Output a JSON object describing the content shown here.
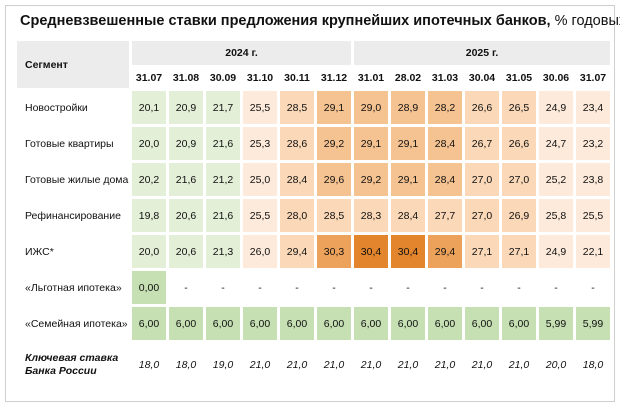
{
  "title": "Средневзвешенные ставки предложения крупнейших ипотечных банков,",
  "title_unit": "% годовых",
  "colors": {
    "green": "#c6e0b4",
    "green_light": "#e4efd8",
    "orange_dark": "#e2852c",
    "orange": "#eda25c",
    "orange_mid": "#f5c291",
    "orange_light": "#fad8b8",
    "orange_pale": "#fdeadb",
    "header_gray": "#ececec"
  },
  "chart_data": {
    "type": "table",
    "segment_label": "Сегмент",
    "years": [
      {
        "label": "2024 г.",
        "span": 6
      },
      {
        "label": "2025 г.",
        "span": 7
      }
    ],
    "columns": [
      "31.07",
      "31.08",
      "30.09",
      "31.10",
      "30.11",
      "31.12",
      "31.01",
      "28.02",
      "31.03",
      "30.04",
      "31.05",
      "30.06",
      "31.07"
    ],
    "rows": [
      {
        "label": "Новостройки",
        "values": [
          "20,1",
          "20,9",
          "21,7",
          "25,5",
          "28,5",
          "29,1",
          "29,0",
          "28,9",
          "28,2",
          "26,6",
          "26,5",
          "24,9",
          "23,4"
        ],
        "heat": [
          1,
          1,
          1,
          2,
          3,
          4,
          4,
          4,
          4,
          3,
          3,
          2,
          2
        ]
      },
      {
        "label": "Готовые квартиры",
        "values": [
          "20,0",
          "20,9",
          "21,6",
          "25,3",
          "28,6",
          "29,2",
          "29,1",
          "29,1",
          "28,4",
          "26,7",
          "26,6",
          "24,7",
          "23,2"
        ],
        "heat": [
          1,
          1,
          1,
          2,
          3,
          4,
          4,
          4,
          4,
          3,
          3,
          2,
          2
        ]
      },
      {
        "label": "Готовые жилые дома",
        "values": [
          "20,2",
          "21,6",
          "21,2",
          "25,0",
          "28,4",
          "29,6",
          "29,2",
          "29,1",
          "28,4",
          "27,0",
          "27,0",
          "25,2",
          "23,8"
        ],
        "heat": [
          1,
          1,
          1,
          2,
          3,
          4,
          4,
          4,
          4,
          3,
          3,
          2,
          2
        ]
      },
      {
        "label": "Рефинансирование",
        "values": [
          "19,8",
          "20,6",
          "21,6",
          "25,5",
          "28,0",
          "28,5",
          "28,3",
          "28,4",
          "27,7",
          "27,0",
          "26,9",
          "25,8",
          "25,5"
        ],
        "heat": [
          1,
          1,
          1,
          2,
          3,
          3,
          3,
          3,
          3,
          3,
          3,
          2,
          2
        ]
      },
      {
        "label": "ИЖС*",
        "values": [
          "20,0",
          "20,6",
          "21,3",
          "26,0",
          "29,4",
          "30,3",
          "30,4",
          "30,4",
          "29,4",
          "27,1",
          "27,1",
          "24,9",
          "22,1"
        ],
        "heat": [
          1,
          1,
          1,
          2,
          3,
          5,
          6,
          6,
          5,
          3,
          3,
          2,
          2
        ]
      },
      {
        "label": "«Льготная ипотека»",
        "values": [
          "0,00",
          "-",
          "-",
          "-",
          "-",
          "-",
          "-",
          "-",
          "-",
          "-",
          "-",
          "-",
          "-"
        ],
        "heat": [
          7,
          0,
          0,
          0,
          0,
          0,
          0,
          0,
          0,
          0,
          0,
          0,
          0
        ]
      },
      {
        "label": "«Семейная ипотека»",
        "values": [
          "6,00",
          "6,00",
          "6,00",
          "6,00",
          "6,00",
          "6,00",
          "6,00",
          "6,00",
          "6,00",
          "6,00",
          "6,00",
          "5,99",
          "5,99"
        ],
        "heat": [
          7,
          7,
          7,
          7,
          7,
          7,
          7,
          7,
          7,
          7,
          7,
          7,
          7
        ]
      }
    ],
    "key_rate": {
      "label_line1": "Ключевая ставка",
      "label_line2": "Банка России",
      "values": [
        "18,0",
        "18,0",
        "19,0",
        "21,0",
        "21,0",
        "21,0",
        "21,0",
        "21,0",
        "21,0",
        "21,0",
        "21,0",
        "20,0",
        "18,0"
      ]
    }
  }
}
